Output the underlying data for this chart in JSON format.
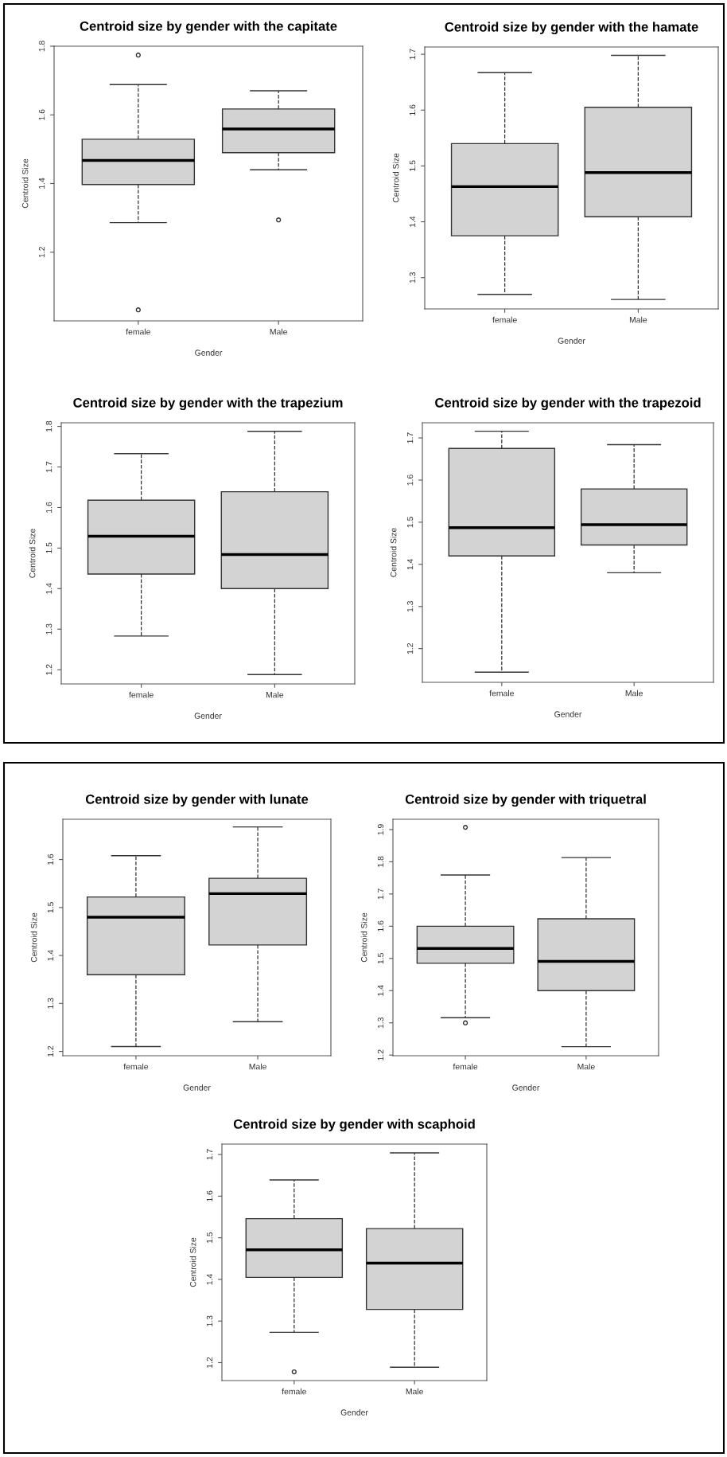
{
  "chart_data": [
    {
      "type": "box",
      "title": "Centroid size by gender with the capitate",
      "xlabel": "Gender",
      "ylabel": "Centroid Size",
      "categories": [
        "female",
        "Male"
      ],
      "ylim": [
        1.0,
        1.8
      ],
      "yticks": [
        1.2,
        1.4,
        1.6,
        1.8
      ],
      "series": [
        {
          "color": "#d3d3d3",
          "boxes": [
            {
              "low": 1.286,
              "q1": 1.397,
              "median": 1.467,
              "q3": 1.529,
              "high": 1.688,
              "outliers": [
                1.774,
                1.032
              ]
            },
            {
              "low": 1.44,
              "q1": 1.49,
              "median": 1.559,
              "q3": 1.617,
              "high": 1.67,
              "outliers": [
                1.294
              ]
            }
          ]
        }
      ]
    },
    {
      "type": "box",
      "title": "Centroid size by gender with the hamate",
      "xlabel": "Gender",
      "ylabel": "Centroid Size",
      "categories": [
        "female",
        "Male"
      ],
      "ylim": [
        1.244,
        1.713
      ],
      "yticks": [
        1.3,
        1.4,
        1.5,
        1.6,
        1.7
      ],
      "series": [
        {
          "color": "#d3d3d3",
          "boxes": [
            {
              "low": 1.27,
              "q1": 1.375,
              "median": 1.463,
              "q3": 1.54,
              "high": 1.667
            },
            {
              "low": 1.261,
              "q1": 1.409,
              "median": 1.488,
              "q3": 1.605,
              "high": 1.698
            }
          ]
        }
      ]
    },
    {
      "type": "box",
      "title": "Centroid size by gender with the trapezium",
      "xlabel": "Gender",
      "ylabel": "Centroid Size",
      "categories": [
        "female",
        "Male"
      ],
      "ylim": [
        1.165,
        1.809
      ],
      "yticks": [
        1.2,
        1.3,
        1.4,
        1.5,
        1.6,
        1.7,
        1.8
      ],
      "series": [
        {
          "color": "#d3d3d3",
          "boxes": [
            {
              "low": 1.283,
              "q1": 1.436,
              "median": 1.529,
              "q3": 1.618,
              "high": 1.733
            },
            {
              "low": 1.188,
              "q1": 1.4,
              "median": 1.484,
              "q3": 1.639,
              "high": 1.788
            }
          ]
        }
      ]
    },
    {
      "type": "box",
      "title": "Centroid size by gender with the trapezoid",
      "xlabel": "Gender",
      "ylabel": "Centroid Size",
      "categories": [
        "female",
        "Male"
      ],
      "ylim": [
        1.12,
        1.736
      ],
      "yticks": [
        1.2,
        1.3,
        1.4,
        1.5,
        1.6,
        1.7
      ],
      "series": [
        {
          "color": "#d3d3d3",
          "boxes": [
            {
              "low": 1.144,
              "q1": 1.42,
              "median": 1.487,
              "q3": 1.675,
              "high": 1.716
            },
            {
              "low": 1.38,
              "q1": 1.446,
              "median": 1.494,
              "q3": 1.579,
              "high": 1.684
            }
          ]
        }
      ]
    },
    {
      "type": "box",
      "title": "Centroid size by gender with lunate",
      "xlabel": "Gender",
      "ylabel": "Centroid Size",
      "categories": [
        "female",
        "Male"
      ],
      "ylim": [
        1.191,
        1.684
      ],
      "yticks": [
        1.2,
        1.3,
        1.4,
        1.5,
        1.6
      ],
      "series": [
        {
          "color": "#d3d3d3",
          "boxes": [
            {
              "low": 1.21,
              "q1": 1.36,
              "median": 1.48,
              "q3": 1.522,
              "high": 1.608
            },
            {
              "low": 1.262,
              "q1": 1.422,
              "median": 1.529,
              "q3": 1.561,
              "high": 1.668
            }
          ]
        }
      ]
    },
    {
      "type": "box",
      "title": "Centroid size by gender with triquetral",
      "xlabel": "Gender",
      "ylabel": "Centroid Size",
      "categories": [
        "female",
        "Male"
      ],
      "ylim": [
        1.198,
        1.932
      ],
      "yticks": [
        1.2,
        1.3,
        1.4,
        1.5,
        1.6,
        1.7,
        1.8,
        1.9
      ],
      "series": [
        {
          "color": "#d3d3d3",
          "boxes": [
            {
              "low": 1.316,
              "q1": 1.485,
              "median": 1.531,
              "q3": 1.6,
              "high": 1.759,
              "outliers": [
                1.907,
                1.3
              ]
            },
            {
              "low": 1.226,
              "q1": 1.4,
              "median": 1.491,
              "q3": 1.623,
              "high": 1.813
            }
          ]
        }
      ]
    },
    {
      "type": "box",
      "title": "Centroid size by gender with scaphoid",
      "xlabel": "Gender",
      "ylabel": "Centroid Size",
      "categories": [
        "female",
        "Male"
      ],
      "ylim": [
        1.157,
        1.725
      ],
      "yticks": [
        1.2,
        1.3,
        1.4,
        1.5,
        1.6,
        1.7
      ],
      "series": [
        {
          "color": "#d3d3d3",
          "boxes": [
            {
              "low": 1.273,
              "q1": 1.405,
              "median": 1.471,
              "q3": 1.546,
              "high": 1.639,
              "outliers": [
                1.178
              ]
            },
            {
              "low": 1.189,
              "q1": 1.328,
              "median": 1.439,
              "q3": 1.522,
              "high": 1.704
            }
          ]
        }
      ]
    }
  ]
}
